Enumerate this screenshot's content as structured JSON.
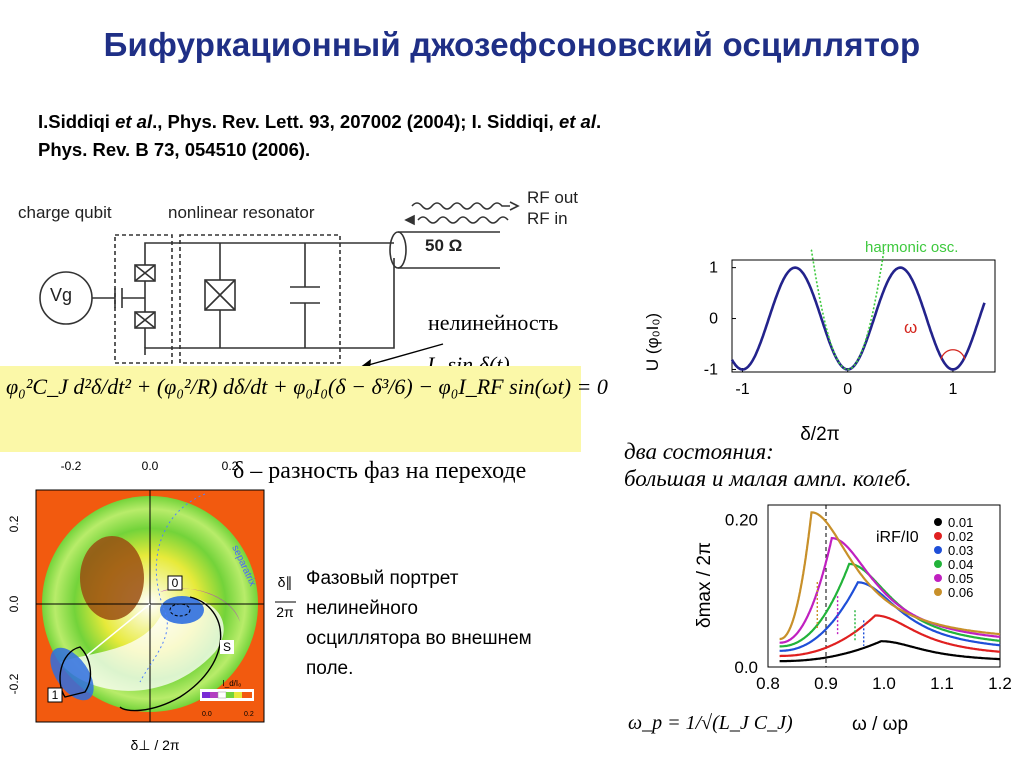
{
  "slide": {
    "title": "Бифуркационный джозефсоновский осциллятор",
    "reference_line1_a": "I.Siddiqi ",
    "reference_line1_b": "et al",
    "reference_line1_c": "., Phys. Rev. Lett. 93, 207002 (2004); I. Siddiqi, ",
    "reference_line1_d": "et al",
    "reference_line1_e": ".",
    "reference_line2": "Phys. Rev. B  73, 054510 (2006)."
  },
  "circuit": {
    "label_charge_qubit": "charge qubit",
    "label_resonator": "nonlinear resonator",
    "rf_out": "RF out",
    "rf_in": "RF in",
    "impedance": "50 Ω",
    "gate_label": "Vg"
  },
  "annotations": {
    "nonlinearity": "нелинейность",
    "nonlinear_term": "I₀ sin δ(t)",
    "equation": "φ₀²C_J d²δ/dt² + (φ₀²/R) dδ/dt + φ₀I₀(δ − δ³/6) − φ₀I_RF sin(ωt) = 0",
    "delta_definition": "δ – разность фаз на переходе",
    "two_states_line1": "два состояния:",
    "two_states_line2": "большая и малая ампл. колеб.",
    "phase_caption": "Фазовый портрет нелинейного осциллятора  во внешнем поле.",
    "omega_p_formula": "ω_p = 1/√(L_J C_J)"
  },
  "phase_portrait": {
    "x_ticks": [
      "-0.2",
      "0.0",
      "0.2"
    ],
    "y_ticks": [
      "0.2",
      "0.0",
      "-0.2"
    ],
    "x_label": "δ⊥ / 2π",
    "y_label_top": "δ∥",
    "y_label_bottom": "2π",
    "state_0": "0",
    "state_s": "S",
    "state_1": "1",
    "colorbar_label": "I_d/I₀",
    "colorbar_min": "0.0",
    "colorbar_max": "0.2",
    "separatrix_label": "separatrix",
    "colors": {
      "background": "#f25a0f",
      "ring_green": "#73d33a",
      "ring_yellow": "#e7ea3a",
      "purple": "#b33ec0",
      "blue": "#2f6fe0"
    }
  },
  "chart_data": [
    {
      "type": "line",
      "title": "",
      "xlabel": "δ/2π",
      "ylabel": "U (φ₀I₀)",
      "xlim": [
        -1.1,
        1.4
      ],
      "ylim": [
        -1.05,
        1.15
      ],
      "x_ticks": [
        "-1",
        "0",
        "1"
      ],
      "y_ticks": [
        "1",
        "0",
        "-1"
      ],
      "series": [
        {
          "name": "",
          "color": "#23238c",
          "function": "-cos(2πx)"
        },
        {
          "name": "harmonic osc.",
          "color": "#3ec93e",
          "style": "dotted",
          "function": "-1 + 2π²x²"
        }
      ],
      "annotation": "ω"
    },
    {
      "type": "line",
      "title": "",
      "xlabel": "ω  / ωp",
      "ylabel": "δmax / 2π",
      "xlim": [
        0.8,
        1.2
      ],
      "ylim": [
        0.0,
        0.22
      ],
      "x_ticks": [
        "0.8",
        "0.9",
        "1.0",
        "1.1",
        "1.2"
      ],
      "y_ticks": [
        "0.20",
        "0.0"
      ],
      "legend_title": "iRF/I0",
      "legend_position": "top-right",
      "series": [
        {
          "name": "0.01",
          "color": "#000000",
          "peak_x": 0.995,
          "peak_y": 0.035,
          "base_left": 0.008,
          "base_right": 0.006
        },
        {
          "name": "0.02",
          "color": "#e02020",
          "peak_x": 0.985,
          "peak_y": 0.07,
          "base_left": 0.015,
          "base_right": 0.012
        },
        {
          "name": "0.03",
          "color": "#1f4fd8",
          "peak_x": 0.955,
          "peak_y": 0.115,
          "base_left": 0.022,
          "base_right": 0.018
        },
        {
          "name": "0.04",
          "color": "#22b33a",
          "peak_x": 0.94,
          "peak_y": 0.14,
          "base_left": 0.028,
          "base_right": 0.023
        },
        {
          "name": "0.05",
          "color": "#c020c0",
          "peak_x": 0.91,
          "peak_y": 0.175,
          "base_left": 0.033,
          "base_right": 0.028
        },
        {
          "name": "0.06",
          "color": "#c8902a",
          "peak_x": 0.875,
          "peak_y": 0.21,
          "base_left": 0.038,
          "base_right": 0.032
        }
      ],
      "marked_x": 0.9
    }
  ]
}
